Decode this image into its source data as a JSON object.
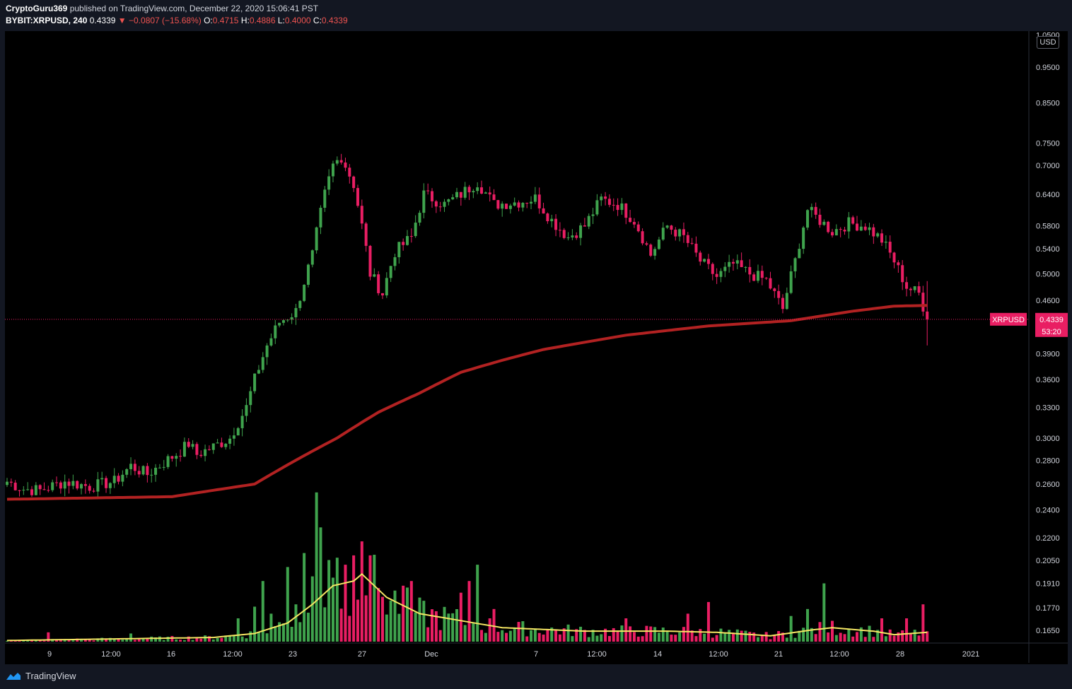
{
  "header": {
    "author": "CryptoGuru369",
    "published_text": "published on TradingView.com, December 22, 2020 15:06:41 PST",
    "symbol": "BYBIT:XRPUSD, 240",
    "last": "0.4339",
    "change": "−0.0807 (−15.68%)",
    "o_label": "O:",
    "o_value": "0.4715",
    "h_label": "H:",
    "h_value": "0.4886",
    "l_label": "L:",
    "l_value": "0.4000",
    "c_label": "C:",
    "c_value": "0.4339"
  },
  "footer": {
    "brand": "TradingView"
  },
  "price_axis": {
    "currency": "USD"
  },
  "colors": {
    "background": "#000000",
    "up": "#26a69a",
    "up_candle": "#3fa34d",
    "down": "#e91e63",
    "ma_line": "#b22222",
    "volume_ma": "#f5e663",
    "price_label_bg": "#e91e63"
  },
  "chart_data": {
    "type": "candlestick",
    "symbol": "XRPUSD",
    "exchange": "BYBIT",
    "interval": "240",
    "y_scale": "log",
    "ylim": [
      0.155,
      1.05
    ],
    "y_ticks": [
      "1.0500",
      "0.9500",
      "0.8500",
      "0.7500",
      "0.7000",
      "0.6400",
      "0.5800",
      "0.5400",
      "0.5000",
      "0.4600",
      "0.3900",
      "0.3600",
      "0.3300",
      "0.3000",
      "0.2800",
      "0.2600",
      "0.2400",
      "0.2200",
      "0.2050",
      "0.1910",
      "0.1770",
      "0.1650"
    ],
    "x_ticks": [
      "9",
      "12:00",
      "16",
      "12:00",
      "23",
      "27",
      "Dec",
      "7",
      "12:00",
      "14",
      "12:00",
      "21",
      "12:00",
      "28",
      "2021"
    ],
    "last_price_label": "XRPUSD",
    "last_price": "0.4339",
    "countdown": "53:20",
    "price_path": [
      [
        0,
        0.262
      ],
      [
        4,
        0.256
      ],
      [
        8,
        0.255
      ],
      [
        14,
        0.262
      ],
      [
        20,
        0.258
      ],
      [
        26,
        0.262
      ],
      [
        30,
        0.275
      ],
      [
        34,
        0.268
      ],
      [
        38,
        0.278
      ],
      [
        42,
        0.288
      ],
      [
        44,
        0.295
      ],
      [
        46,
        0.285
      ],
      [
        50,
        0.292
      ],
      [
        54,
        0.3
      ],
      [
        58,
        0.33
      ],
      [
        60,
        0.36
      ],
      [
        63,
        0.4
      ],
      [
        66,
        0.43
      ],
      [
        70,
        0.445
      ],
      [
        74,
        0.53
      ],
      [
        77,
        0.64
      ],
      [
        79,
        0.7
      ],
      [
        81,
        0.72
      ],
      [
        84,
        0.66
      ],
      [
        88,
        0.5
      ],
      [
        91,
        0.47
      ],
      [
        94,
        0.535
      ],
      [
        98,
        0.56
      ],
      [
        101,
        0.64
      ],
      [
        106,
        0.62
      ],
      [
        110,
        0.64
      ],
      [
        114,
        0.665
      ],
      [
        118,
        0.62
      ],
      [
        124,
        0.625
      ],
      [
        128,
        0.632
      ],
      [
        132,
        0.59
      ],
      [
        136,
        0.56
      ],
      [
        140,
        0.58
      ],
      [
        144,
        0.63
      ],
      [
        148,
        0.62
      ],
      [
        152,
        0.59
      ],
      [
        156,
        0.53
      ],
      [
        160,
        0.58
      ],
      [
        164,
        0.56
      ],
      [
        168,
        0.52
      ],
      [
        172,
        0.495
      ],
      [
        176,
        0.515
      ],
      [
        180,
        0.5
      ],
      [
        184,
        0.49
      ],
      [
        188,
        0.448
      ],
      [
        191,
        0.52
      ],
      [
        194,
        0.61
      ],
      [
        197,
        0.59
      ],
      [
        200,
        0.57
      ],
      [
        204,
        0.585
      ],
      [
        208,
        0.58
      ],
      [
        212,
        0.555
      ],
      [
        215,
        0.52
      ],
      [
        218,
        0.48
      ],
      [
        221,
        0.47
      ],
      [
        223,
        0.4339
      ]
    ],
    "ma": [
      [
        0,
        0.248
      ],
      [
        40,
        0.25
      ],
      [
        60,
        0.26
      ],
      [
        70,
        0.28
      ],
      [
        80,
        0.3
      ],
      [
        90,
        0.325
      ],
      [
        100,
        0.345
      ],
      [
        110,
        0.368
      ],
      [
        120,
        0.382
      ],
      [
        130,
        0.395
      ],
      [
        150,
        0.413
      ],
      [
        170,
        0.425
      ],
      [
        190,
        0.432
      ],
      [
        205,
        0.445
      ],
      [
        215,
        0.452
      ],
      [
        223,
        0.453
      ]
    ],
    "volume": {
      "spike_values": [
        [
          10,
          0.4
        ],
        [
          30,
          0.35
        ],
        [
          56,
          1.0
        ],
        [
          60,
          1.5
        ],
        [
          62,
          2.6
        ],
        [
          64,
          1.2
        ],
        [
          68,
          3.2
        ],
        [
          70,
          1.6
        ],
        [
          72,
          3.8
        ],
        [
          74,
          2.8
        ],
        [
          75,
          6.4
        ],
        [
          76,
          4.9
        ],
        [
          78,
          3.5
        ],
        [
          80,
          3.6
        ],
        [
          82,
          3.3
        ],
        [
          84,
          3.7
        ],
        [
          86,
          4.3
        ],
        [
          88,
          3.7
        ],
        [
          90,
          2.3
        ],
        [
          96,
          2.4
        ],
        [
          98,
          2.6
        ],
        [
          110,
          2.1
        ],
        [
          112,
          2.6
        ],
        [
          114,
          3.3
        ],
        [
          118,
          1.4
        ],
        [
          150,
          1.0
        ],
        [
          165,
          1.2
        ],
        [
          170,
          1.7
        ],
        [
          190,
          1.1
        ],
        [
          194,
          1.4
        ],
        [
          198,
          2.5
        ],
        [
          212,
          1.0
        ],
        [
          218,
          1.0
        ],
        [
          222,
          1.6
        ]
      ],
      "ma_path": [
        [
          0,
          0.05
        ],
        [
          50,
          0.18
        ],
        [
          60,
          0.35
        ],
        [
          68,
          0.8
        ],
        [
          74,
          1.6
        ],
        [
          79,
          2.4
        ],
        [
          84,
          2.6
        ],
        [
          86,
          2.9
        ],
        [
          92,
          1.9
        ],
        [
          100,
          1.2
        ],
        [
          110,
          0.9
        ],
        [
          120,
          0.6
        ],
        [
          140,
          0.45
        ],
        [
          160,
          0.45
        ],
        [
          172,
          0.4
        ],
        [
          185,
          0.25
        ],
        [
          195,
          0.5
        ],
        [
          200,
          0.6
        ],
        [
          210,
          0.45
        ],
        [
          215,
          0.3
        ],
        [
          223,
          0.4
        ]
      ]
    }
  }
}
